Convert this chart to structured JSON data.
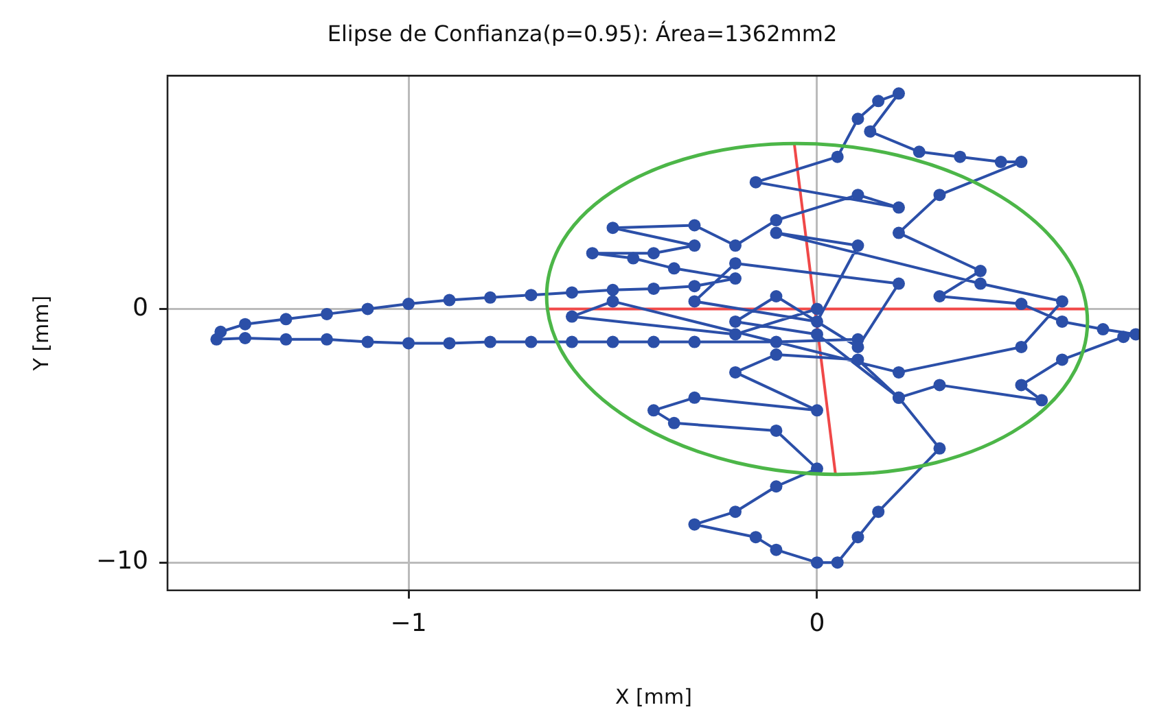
{
  "chart_data": {
    "type": "line",
    "title": "Elipse de Confianza(p=0.95): Área=1362mm2",
    "xlabel": "X [mm]",
    "ylabel": "Y [mm]",
    "xlim": [
      -1.59,
      0.79
    ],
    "ylim": [
      -11.1,
      9.2
    ],
    "xticks": [
      {
        "value": -1,
        "label": "−1"
      },
      0
    ],
    "yticks": [
      {
        "value": -10,
        "label": "−10"
      },
      0
    ],
    "grid": true,
    "legend": false,
    "series": [
      {
        "marker": "circle",
        "color": "#2b4fa8",
        "x": [
          0.1,
          -0.1,
          -0.3,
          -0.4,
          -0.5,
          -0.6,
          -0.7,
          -0.8,
          -0.9,
          -1.0,
          -1.1,
          -1.2,
          -1.3,
          -1.4,
          -1.47,
          -1.46,
          -1.4,
          -1.3,
          -1.2,
          -1.1,
          -1.0,
          -0.9,
          -0.8,
          -0.7,
          -0.6,
          -0.5,
          -0.4,
          -0.3,
          -0.2,
          -0.35,
          -0.45,
          -0.55,
          -0.4,
          -0.3,
          -0.5,
          -0.3,
          -0.2,
          -0.1,
          0.1,
          0.2,
          -0.15,
          0.05,
          0.1,
          0.15,
          0.2,
          0.13,
          0.25,
          0.35,
          0.45,
          0.5,
          0.3,
          0.2,
          0.4,
          0.3,
          0.5,
          0.6,
          0.7,
          0.78,
          0.75,
          0.6,
          0.5,
          0.55,
          0.3,
          0.2,
          0.1,
          -0.1,
          -0.2,
          0.0,
          -0.3,
          -0.4,
          -0.35,
          -0.1,
          0.0,
          -0.1,
          -0.2,
          -0.3,
          -0.15,
          -0.1,
          0.0,
          0.05,
          0.1,
          0.15,
          0.3,
          0.2,
          0.0,
          -0.2,
          -0.1,
          0.1,
          0.2,
          -0.2,
          -0.3,
          0.0,
          0.1,
          -0.1,
          0.4,
          0.6,
          0.5,
          0.2,
          -0.5,
          -0.6,
          -0.2,
          0.0
        ],
        "values": [
          -1.2,
          -1.3,
          -1.3,
          -1.3,
          -1.3,
          -1.3,
          -1.3,
          -1.3,
          -1.35,
          -1.35,
          -1.3,
          -1.2,
          -1.2,
          -1.15,
          -1.2,
          -0.9,
          -0.6,
          -0.4,
          -0.2,
          0.0,
          0.2,
          0.35,
          0.45,
          0.55,
          0.65,
          0.75,
          0.8,
          0.9,
          1.2,
          1.6,
          2.0,
          2.2,
          2.2,
          2.5,
          3.2,
          3.3,
          2.5,
          3.5,
          4.5,
          4.0,
          5.0,
          6.0,
          7.5,
          8.2,
          8.5,
          7.0,
          6.2,
          6.0,
          5.8,
          5.8,
          4.5,
          3.0,
          1.5,
          0.5,
          0.2,
          -0.5,
          -0.8,
          -1.0,
          -1.1,
          -2.0,
          -3.0,
          -3.6,
          -3.0,
          -3.5,
          -2.0,
          -1.8,
          -2.5,
          -4.0,
          -3.5,
          -4.0,
          -4.5,
          -4.8,
          -6.3,
          -7.0,
          -8.0,
          -8.5,
          -9.0,
          -9.5,
          -10.0,
          -10.0,
          -9.0,
          -8.0,
          -5.5,
          -3.5,
          -1.0,
          -0.5,
          0.5,
          -1.5,
          1.0,
          1.8,
          0.3,
          -0.5,
          2.5,
          3.0,
          1.0,
          0.3,
          -1.5,
          -2.5,
          0.3,
          -0.3,
          -1.0,
          0.0
        ]
      },
      {
        "marker": "none",
        "color": "#f04848",
        "x": [
          -0.66,
          0.66
        ],
        "values": [
          0,
          0
        ]
      },
      {
        "marker": "none",
        "color": "#f04848",
        "x": [
          -0.056,
          0.045
        ],
        "values": [
          6.55,
          -6.5
        ]
      }
    ]
  }
}
